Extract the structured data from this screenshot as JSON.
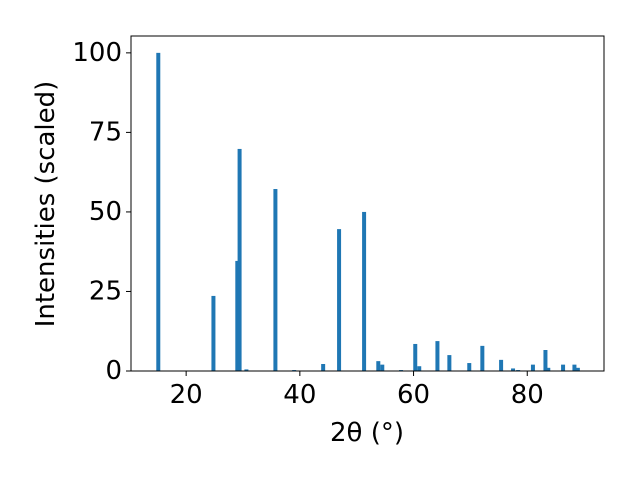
{
  "chart_data": {
    "type": "bar",
    "xlabel": "2θ (°)",
    "ylabel": "Intensities (scaled)",
    "x": [
      15.1,
      24.8,
      29.0,
      29.4,
      30.6,
      35.7,
      39.0,
      44.1,
      46.9,
      51.3,
      53.8,
      54.5,
      57.8,
      60.3,
      61.0,
      64.2,
      66.3,
      69.8,
      72.1,
      75.4,
      77.5,
      78.4,
      81.0,
      83.2,
      83.7,
      86.3,
      88.3,
      88.9
    ],
    "values": [
      100,
      23.6,
      34.6,
      69.8,
      0.5,
      57.2,
      0.3,
      2.2,
      44.6,
      50,
      3.1,
      2,
      0.3,
      8.5,
      1.5,
      9.4,
      5,
      2.5,
      7.9,
      3.5,
      0.8,
      0.3,
      2,
      6.6,
      1,
      2,
      2,
      1
    ],
    "color": "#1f77b4",
    "xlim": [
      10.3,
      93.5
    ],
    "xticks": [
      20,
      40,
      60,
      80
    ],
    "ylim": [
      0,
      105.3
    ],
    "yticks": [
      0,
      25,
      50,
      75,
      100
    ],
    "grid": false
  }
}
